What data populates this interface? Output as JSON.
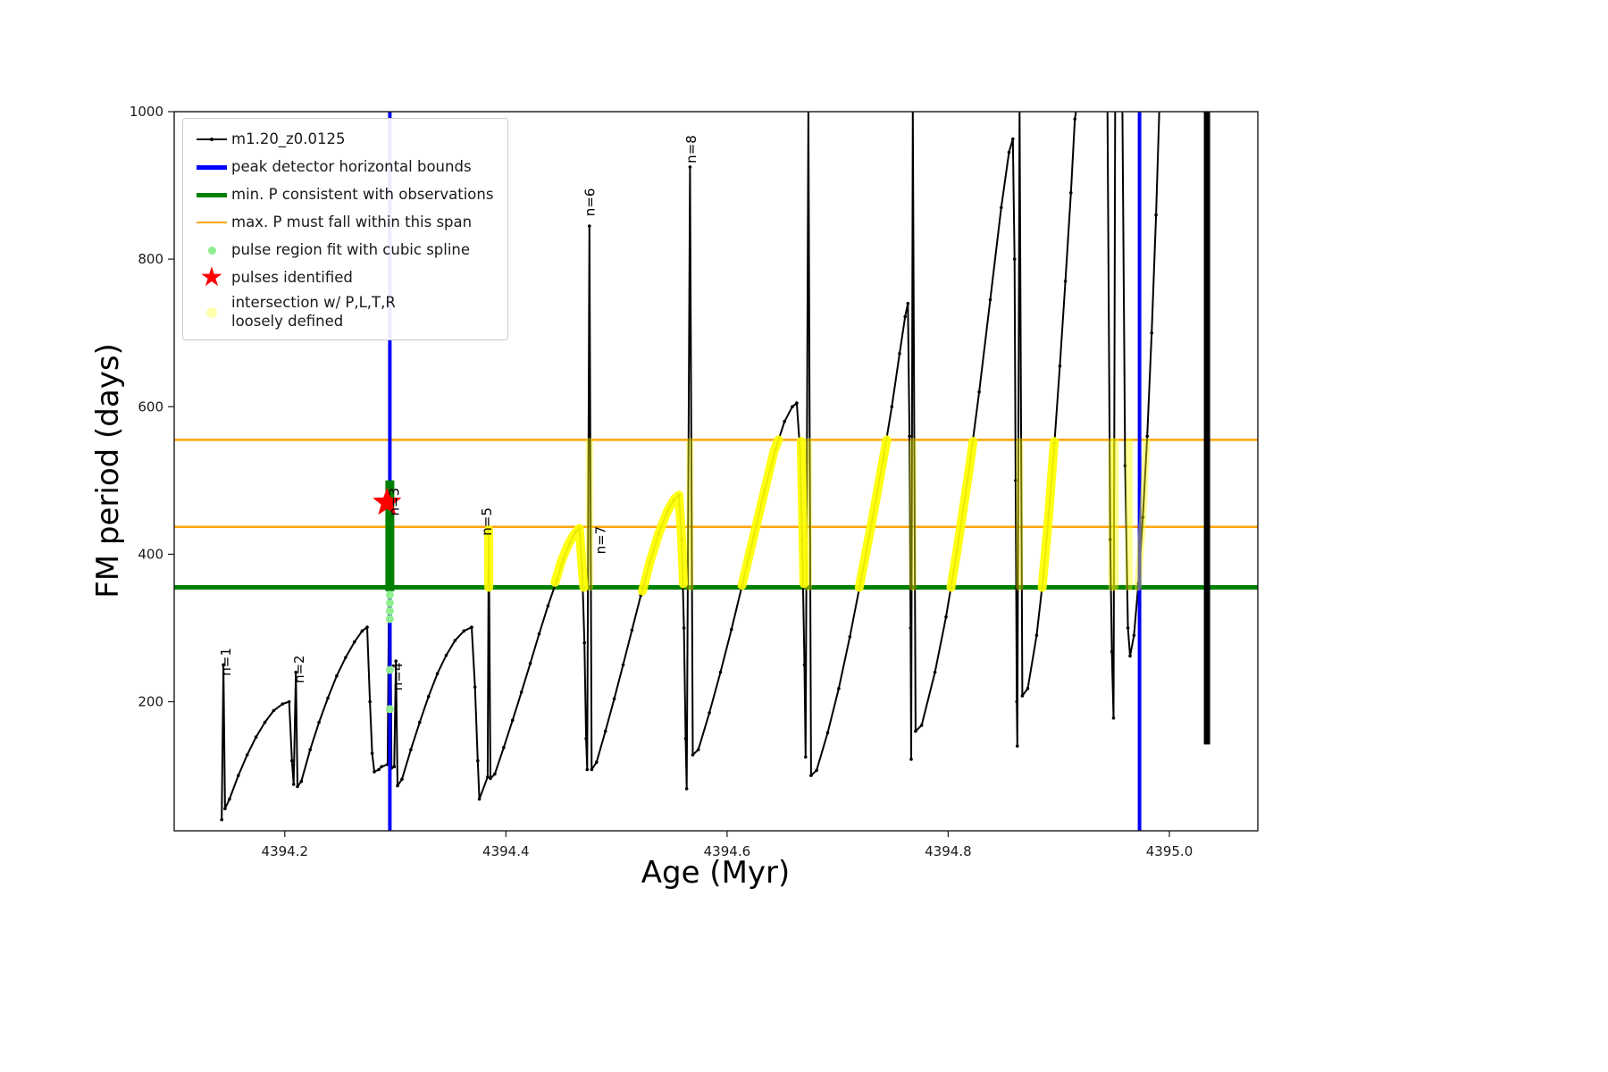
{
  "axes": {
    "xlabel": "Age (Myr)",
    "ylabel": "FM period (days)",
    "xlim": [
      4394.1,
      4395.08
    ],
    "ylim": [
      25,
      1000
    ],
    "x_ticks": [
      {
        "v": 4394.2,
        "label": "4394.2"
      },
      {
        "v": 4394.4,
        "label": "4394.4"
      },
      {
        "v": 4394.6,
        "label": "4394.6"
      },
      {
        "v": 4394.8,
        "label": "4394.8"
      },
      {
        "v": 4395.0,
        "label": "4395.0"
      }
    ],
    "y_ticks": [
      {
        "v": 200,
        "label": "200"
      },
      {
        "v": 400,
        "label": "400"
      },
      {
        "v": 600,
        "label": "600"
      },
      {
        "v": 800,
        "label": "800"
      },
      {
        "v": 1000,
        "label": "1000"
      }
    ]
  },
  "colors": {
    "curve": "#000000",
    "bound": "#0000ff",
    "min_p": "#008000",
    "max_p": "#ffa500",
    "spline": "#90ee90",
    "pulse": "#ff0000",
    "intersection": "#ffff00"
  },
  "legend": {
    "items": [
      {
        "key": "sample",
        "icon": "sample-line-icon",
        "label": "m1.20_z0.0125"
      },
      {
        "key": "peak-bounds",
        "icon": "peak-bounds-line-icon",
        "label": "peak detector horizontal bounds"
      },
      {
        "key": "min-p",
        "icon": "min-p-line-icon",
        "label": "min. P consistent with observations"
      },
      {
        "key": "max-p",
        "icon": "max-p-line-icon",
        "label": "max. P must fall within this span"
      },
      {
        "key": "spline",
        "icon": "spline-dot-icon",
        "label": "pulse region fit with cubic spline"
      },
      {
        "key": "pulses",
        "icon": "pulse-star-icon",
        "label": "pulses identified"
      },
      {
        "key": "intersection",
        "icon": "intersection-dot-icon",
        "label": "intersection w/ P,L,T,R\nloosely defined"
      }
    ]
  },
  "chart_data": {
    "type": "line",
    "title": "",
    "xlabel": "Age (Myr)",
    "ylabel": "FM period (days)",
    "xlim": [
      4394.1,
      4395.08
    ],
    "ylim": [
      25,
      1000
    ],
    "series": [
      {
        "name": "m1.20_z0.0125",
        "color": "#000000",
        "lw": 2,
        "markers": true,
        "points": [
          [
            4394.143,
            40
          ],
          [
            4394.1445,
            250
          ],
          [
            4394.146,
            55
          ],
          [
            4394.15,
            68
          ],
          [
            4394.158,
            100
          ],
          [
            4394.166,
            128
          ],
          [
            4394.174,
            152
          ],
          [
            4394.182,
            172
          ],
          [
            4394.19,
            188
          ],
          [
            4394.198,
            197
          ],
          [
            4394.204,
            200
          ],
          [
            4394.2065,
            120
          ],
          [
            4394.208,
            88
          ],
          [
            4394.21,
            240
          ],
          [
            4394.2115,
            85
          ],
          [
            4394.215,
            92
          ],
          [
            4394.223,
            135
          ],
          [
            4394.231,
            172
          ],
          [
            4394.239,
            205
          ],
          [
            4394.247,
            235
          ],
          [
            4394.255,
            260
          ],
          [
            4394.263,
            281
          ],
          [
            4394.27,
            296
          ],
          [
            4394.2745,
            301
          ],
          [
            4394.277,
            200
          ],
          [
            4394.279,
            130
          ],
          [
            4394.281,
            105
          ],
          [
            4394.285,
            108
          ],
          [
            4394.2875,
            112
          ],
          [
            4394.293,
            115
          ],
          [
            4394.295,
            500
          ],
          [
            4394.2965,
            110
          ],
          [
            4394.299,
            112
          ],
          [
            4394.3005,
            255
          ],
          [
            4394.302,
            86
          ],
          [
            4394.306,
            95
          ],
          [
            4394.314,
            135
          ],
          [
            4394.322,
            172
          ],
          [
            4394.33,
            207
          ],
          [
            4394.338,
            238
          ],
          [
            4394.346,
            263
          ],
          [
            4394.354,
            283
          ],
          [
            4394.362,
            296
          ],
          [
            4394.369,
            301
          ],
          [
            4394.372,
            220
          ],
          [
            4394.3745,
            120
          ],
          [
            4394.376,
            68
          ],
          [
            4394.3835,
            98
          ],
          [
            4394.3845,
            433
          ],
          [
            4394.386,
            96
          ],
          [
            4394.39,
            102
          ],
          [
            4394.398,
            138
          ],
          [
            4394.406,
            175
          ],
          [
            4394.414,
            213
          ],
          [
            4394.422,
            252
          ],
          [
            4394.43,
            292
          ],
          [
            4394.438,
            330
          ],
          [
            4394.446,
            365
          ],
          [
            4394.452,
            394
          ],
          [
            4394.458,
            416
          ],
          [
            4394.463,
            430
          ],
          [
            4394.4665,
            435
          ],
          [
            4394.469,
            380
          ],
          [
            4394.471,
            280
          ],
          [
            4394.4725,
            150
          ],
          [
            4394.4735,
            108
          ],
          [
            4394.4755,
            845
          ],
          [
            4394.4775,
            108
          ],
          [
            4394.482,
            118
          ],
          [
            4394.49,
            160
          ],
          [
            4394.498,
            204
          ],
          [
            4394.506,
            250
          ],
          [
            4394.514,
            297
          ],
          [
            4394.522,
            344
          ],
          [
            4394.53,
            388
          ],
          [
            4394.538,
            427
          ],
          [
            4394.546,
            458
          ],
          [
            4394.552,
            474
          ],
          [
            4394.5565,
            480
          ],
          [
            4394.559,
            420
          ],
          [
            4394.561,
            300
          ],
          [
            4394.5625,
            150
          ],
          [
            4394.5635,
            82
          ],
          [
            4394.5665,
            925
          ],
          [
            4394.569,
            128
          ],
          [
            4394.574,
            135
          ],
          [
            4394.584,
            185
          ],
          [
            4394.594,
            240
          ],
          [
            4394.604,
            298
          ],
          [
            4394.614,
            360
          ],
          [
            4394.624,
            424
          ],
          [
            4394.634,
            487
          ],
          [
            4394.644,
            543
          ],
          [
            4394.652,
            580
          ],
          [
            4394.659,
            600
          ],
          [
            4394.663,
            605
          ],
          [
            4394.666,
            540
          ],
          [
            4394.668,
            420
          ],
          [
            4394.67,
            250
          ],
          [
            4394.671,
            125
          ],
          [
            4394.6735,
            1005
          ],
          [
            4394.676,
            100
          ],
          [
            4394.681,
            107
          ],
          [
            4394.691,
            158
          ],
          [
            4394.701,
            218
          ],
          [
            4394.711,
            288
          ],
          [
            4394.721,
            364
          ],
          [
            4394.731,
            444
          ],
          [
            4394.741,
            527
          ],
          [
            4394.749,
            600
          ],
          [
            4394.756,
            672
          ],
          [
            4394.761,
            722
          ],
          [
            4394.7635,
            740
          ],
          [
            4394.765,
            560
          ],
          [
            4394.766,
            300
          ],
          [
            4394.7665,
            122
          ],
          [
            4394.768,
            1005
          ],
          [
            4394.7705,
            160
          ],
          [
            4394.776,
            168
          ],
          [
            4394.788,
            240
          ],
          [
            4394.798,
            315
          ],
          [
            4394.808,
            405
          ],
          [
            4394.818,
            505
          ],
          [
            4394.828,
            620
          ],
          [
            4394.838,
            745
          ],
          [
            4394.848,
            870
          ],
          [
            4394.855,
            945
          ],
          [
            4394.8585,
            963
          ],
          [
            4394.86,
            800
          ],
          [
            4394.861,
            500
          ],
          [
            4394.862,
            200
          ],
          [
            4394.8625,
            140
          ],
          [
            4394.8645,
            1005
          ],
          [
            4394.867,
            208
          ],
          [
            4394.872,
            218
          ],
          [
            4394.88,
            290
          ],
          [
            4394.886,
            370
          ],
          [
            4394.891,
            455
          ],
          [
            4394.896,
            550
          ],
          [
            4394.901,
            655
          ],
          [
            4394.906,
            770
          ],
          [
            4394.911,
            890
          ],
          [
            4394.9145,
            990
          ],
          [
            4394.916,
            1005
          ],
          [
            4394.944,
            1005
          ],
          [
            4394.9465,
            420
          ],
          [
            4394.948,
            268
          ],
          [
            4394.9495,
            178
          ],
          [
            4394.951,
            1005
          ],
          [
            4394.9575,
            1005
          ],
          [
            4394.96,
            520
          ],
          [
            4394.9625,
            300
          ],
          [
            4394.9645,
            262
          ],
          [
            4394.968,
            290
          ],
          [
            4394.972,
            360
          ],
          [
            4394.976,
            450
          ],
          [
            4394.98,
            560
          ],
          [
            4394.984,
            700
          ],
          [
            4394.988,
            860
          ],
          [
            4394.991,
            1005
          ]
        ]
      },
      {
        "name": "dense-pulse-bar",
        "color": "#000000",
        "lw": 7,
        "markers": false,
        "points": [
          [
            4395.034,
            1005
          ],
          [
            4395.034,
            142
          ]
        ]
      }
    ],
    "vlines": [
      {
        "name": "peak-bound-left",
        "x": 4394.295,
        "color": "#0000ff",
        "lw": 4
      },
      {
        "name": "peak-bound-right",
        "x": 4394.973,
        "color": "#0000ff",
        "lw": 4
      }
    ],
    "hlines": [
      {
        "name": "max-p-upper",
        "y": 555,
        "color": "#ffa500",
        "lw": 2.5
      },
      {
        "name": "max-p-lower",
        "y": 437,
        "color": "#ffa500",
        "lw": 2.5
      },
      {
        "name": "min-p",
        "y": 355,
        "color": "#008000",
        "lw": 5
      }
    ],
    "pulse_segment": {
      "x": 4394.295,
      "y_bottom": 350,
      "y_top": 500,
      "color": "#008000",
      "lw": 10
    },
    "spline_dots": {
      "x": 4394.295,
      "ys": [
        345,
        334,
        323,
        312,
        243,
        190
      ],
      "color": "#90ee90"
    },
    "pulses_identified": [
      {
        "x": 4394.2925,
        "y": 470
      }
    ],
    "yellow_segments": [
      {
        "style": "bright",
        "points": [
          [
            4394.3845,
            355
          ],
          [
            4394.3845,
            433
          ]
        ]
      },
      {
        "style": "bright",
        "points": [
          [
            4394.4445,
            362
          ],
          [
            4394.45,
            390
          ],
          [
            4394.456,
            412
          ],
          [
            4394.462,
            428
          ],
          [
            4394.4665,
            435
          ],
          [
            4394.469,
            380
          ],
          [
            4394.4705,
            355
          ]
        ]
      },
      {
        "style": "pale",
        "points": [
          [
            4394.4755,
            355
          ],
          [
            4394.4755,
            553
          ]
        ]
      },
      {
        "style": "bright",
        "points": [
          [
            4394.5235,
            350
          ],
          [
            4394.53,
            388
          ],
          [
            4394.538,
            427
          ],
          [
            4394.546,
            458
          ],
          [
            4394.5525,
            475
          ],
          [
            4394.5565,
            480
          ],
          [
            4394.559,
            420
          ],
          [
            4394.5605,
            360
          ]
        ]
      },
      {
        "style": "pale",
        "points": [
          [
            4394.5665,
            355
          ],
          [
            4394.5665,
            553
          ]
        ]
      },
      {
        "style": "bright",
        "points": [
          [
            4394.6135,
            358
          ],
          [
            4394.624,
            424
          ],
          [
            4394.634,
            487
          ],
          [
            4394.6425,
            540
          ],
          [
            4394.6465,
            555
          ]
        ]
      },
      {
        "style": "bright",
        "points": [
          [
            4394.667,
            553
          ],
          [
            4394.6685,
            440
          ],
          [
            4394.6695,
            360
          ]
        ]
      },
      {
        "style": "pale",
        "points": [
          [
            4394.6735,
            355
          ],
          [
            4394.6735,
            553
          ]
        ]
      },
      {
        "style": "bright",
        "points": [
          [
            4394.7195,
            355
          ],
          [
            4394.731,
            444
          ],
          [
            4394.741,
            527
          ],
          [
            4394.7445,
            555
          ]
        ]
      },
      {
        "style": "pale",
        "points": [
          [
            4394.768,
            355
          ],
          [
            4394.768,
            553
          ]
        ]
      },
      {
        "style": "bright",
        "points": [
          [
            4394.8025,
            355
          ],
          [
            4394.808,
            405
          ],
          [
            4394.818,
            505
          ],
          [
            4394.8225,
            553
          ]
        ]
      },
      {
        "style": "pale",
        "points": [
          [
            4394.8645,
            355
          ],
          [
            4394.8645,
            553
          ]
        ]
      },
      {
        "style": "bright",
        "points": [
          [
            4394.885,
            355
          ],
          [
            4394.891,
            455
          ],
          [
            4394.8955,
            545
          ],
          [
            4394.896,
            553
          ]
        ]
      },
      {
        "style": "pale",
        "points": [
          [
            4394.948,
            355
          ],
          [
            4394.948,
            553
          ]
        ]
      },
      {
        "style": "pale",
        "points": [
          [
            4394.951,
            355
          ],
          [
            4394.951,
            553
          ]
        ]
      },
      {
        "style": "pale",
        "points": [
          [
            4394.9635,
            355
          ],
          [
            4394.9635,
            553
          ]
        ]
      },
      {
        "style": "pale",
        "points": [
          [
            4394.9715,
            355
          ],
          [
            4394.976,
            450
          ],
          [
            4394.9795,
            553
          ]
        ]
      }
    ],
    "annotations": [
      {
        "text": "n=1",
        "x": 4394.151,
        "y": 235
      },
      {
        "text": "n=2",
        "x": 4394.217,
        "y": 225
      },
      {
        "text": "n=3",
        "x": 4394.303,
        "y": 452
      },
      {
        "text": "n=4",
        "x": 4394.306,
        "y": 215
      },
      {
        "text": "n=5",
        "x": 4394.387,
        "y": 425
      },
      {
        "text": "n=6",
        "x": 4394.48,
        "y": 858
      },
      {
        "text": "n=7",
        "x": 4394.49,
        "y": 400
      },
      {
        "text": "n=8",
        "x": 4394.572,
        "y": 930
      }
    ]
  }
}
